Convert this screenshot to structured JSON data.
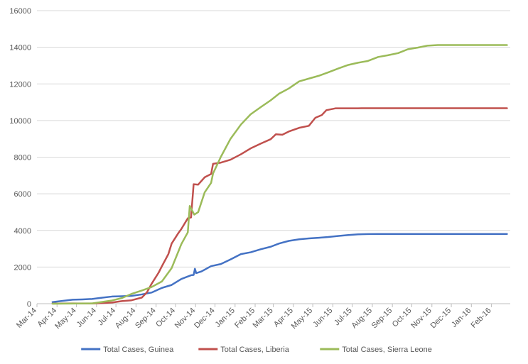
{
  "chart_data": {
    "type": "line",
    "title": "",
    "xlabel": "",
    "ylabel": "",
    "ylim": [
      0,
      16000
    ],
    "y_ticks": [
      "0",
      "2000",
      "4000",
      "6000",
      "8000",
      "10000",
      "12000",
      "14000",
      "16000"
    ],
    "x_range": [
      "2014-03-01",
      "2016-03-01"
    ],
    "x_ticks": [
      {
        "date": "2014-03-01",
        "label": "Mar-14"
      },
      {
        "date": "2014-04-01",
        "label": "Apr-14"
      },
      {
        "date": "2014-05-01",
        "label": "May-14"
      },
      {
        "date": "2014-06-01",
        "label": "Jun-14"
      },
      {
        "date": "2014-07-01",
        "label": "Jul-14"
      },
      {
        "date": "2014-08-01",
        "label": "Aug-14"
      },
      {
        "date": "2014-09-01",
        "label": "Sep-14"
      },
      {
        "date": "2014-10-01",
        "label": "Oct-14"
      },
      {
        "date": "2014-11-01",
        "label": "Nov-14"
      },
      {
        "date": "2014-12-01",
        "label": "Dec-14"
      },
      {
        "date": "2015-01-01",
        "label": "Jan-15"
      },
      {
        "date": "2015-02-01",
        "label": "Feb-15"
      },
      {
        "date": "2015-03-01",
        "label": "Mar-15"
      },
      {
        "date": "2015-04-01",
        "label": "Apr-15"
      },
      {
        "date": "2015-05-01",
        "label": "May-15"
      },
      {
        "date": "2015-06-01",
        "label": "Jun-15"
      },
      {
        "date": "2015-07-01",
        "label": "Jul-15"
      },
      {
        "date": "2015-08-01",
        "label": "Aug-15"
      },
      {
        "date": "2015-09-01",
        "label": "Sep-15"
      },
      {
        "date": "2015-10-01",
        "label": "Oct-15"
      },
      {
        "date": "2015-11-01",
        "label": "Nov-15"
      },
      {
        "date": "2015-12-01",
        "label": "Dec-15"
      },
      {
        "date": "2016-01-01",
        "label": "Jan-16"
      },
      {
        "date": "2016-02-01",
        "label": "Feb-16"
      }
    ],
    "grid": "horizontal",
    "legend_position": "bottom",
    "series": [
      {
        "name": "Total Cases, Guinea",
        "color": "#4472C4",
        "points": [
          [
            "2014-03-25",
            86
          ],
          [
            "2014-04-10",
            157
          ],
          [
            "2014-04-25",
            218
          ],
          [
            "2014-05-10",
            233
          ],
          [
            "2014-05-25",
            258
          ],
          [
            "2014-06-10",
            328
          ],
          [
            "2014-06-25",
            390
          ],
          [
            "2014-07-10",
            409
          ],
          [
            "2014-07-25",
            427
          ],
          [
            "2014-08-10",
            506
          ],
          [
            "2014-08-25",
            607
          ],
          [
            "2014-09-10",
            862
          ],
          [
            "2014-09-25",
            1022
          ],
          [
            "2014-10-10",
            1350
          ],
          [
            "2014-10-25",
            1553
          ],
          [
            "2014-10-29",
            1570
          ],
          [
            "2014-10-31",
            1906
          ],
          [
            "2014-11-02",
            1667
          ],
          [
            "2014-11-10",
            1760
          ],
          [
            "2014-11-25",
            2050
          ],
          [
            "2014-12-10",
            2164
          ],
          [
            "2014-12-25",
            2416
          ],
          [
            "2015-01-10",
            2707
          ],
          [
            "2015-01-25",
            2806
          ],
          [
            "2015-02-10",
            2975
          ],
          [
            "2015-02-25",
            3108
          ],
          [
            "2015-03-10",
            3285
          ],
          [
            "2015-03-25",
            3429
          ],
          [
            "2015-04-10",
            3515
          ],
          [
            "2015-04-25",
            3565
          ],
          [
            "2015-05-10",
            3600
          ],
          [
            "2015-05-25",
            3641
          ],
          [
            "2015-06-10",
            3700
          ],
          [
            "2015-06-25",
            3748
          ],
          [
            "2015-07-10",
            3786
          ],
          [
            "2015-07-25",
            3800
          ],
          [
            "2015-08-10",
            3804
          ],
          [
            "2016-02-25",
            3804
          ]
        ]
      },
      {
        "name": "Total Cases, Liberia",
        "color": "#C0504D",
        "points": [
          [
            "2014-03-25",
            5
          ],
          [
            "2014-04-25",
            13
          ],
          [
            "2014-05-25",
            12
          ],
          [
            "2014-06-10",
            33
          ],
          [
            "2014-06-25",
            64
          ],
          [
            "2014-07-10",
            142
          ],
          [
            "2014-07-25",
            186
          ],
          [
            "2014-08-10",
            334
          ],
          [
            "2014-08-18",
            624
          ],
          [
            "2014-08-25",
            1082
          ],
          [
            "2014-09-05",
            1700
          ],
          [
            "2014-09-10",
            2046
          ],
          [
            "2014-09-20",
            2710
          ],
          [
            "2014-09-25",
            3280
          ],
          [
            "2014-10-05",
            3834
          ],
          [
            "2014-10-10",
            4076
          ],
          [
            "2014-10-20",
            4665
          ],
          [
            "2014-10-25",
            4711
          ],
          [
            "2014-10-29",
            6525
          ],
          [
            "2014-11-05",
            6500
          ],
          [
            "2014-11-15",
            6900
          ],
          [
            "2014-11-25",
            7082
          ],
          [
            "2014-11-28",
            7635
          ],
          [
            "2014-12-10",
            7700
          ],
          [
            "2014-12-25",
            7862
          ],
          [
            "2015-01-10",
            8157
          ],
          [
            "2015-01-25",
            8478
          ],
          [
            "2015-02-10",
            8745
          ],
          [
            "2015-02-25",
            8981
          ],
          [
            "2015-03-05",
            9250
          ],
          [
            "2015-03-15",
            9224
          ],
          [
            "2015-03-25",
            9400
          ],
          [
            "2015-04-10",
            9602
          ],
          [
            "2015-04-25",
            9712
          ],
          [
            "2015-05-05",
            10150
          ],
          [
            "2015-05-15",
            10300
          ],
          [
            "2015-05-22",
            10564
          ],
          [
            "2015-06-05",
            10666
          ],
          [
            "2015-07-10",
            10670
          ],
          [
            "2015-07-20",
            10672
          ],
          [
            "2016-02-25",
            10675
          ]
        ]
      },
      {
        "name": "Total Cases, Sierra Leone",
        "color": "#9BBB59",
        "points": [
          [
            "2014-03-25",
            0
          ],
          [
            "2014-05-25",
            16
          ],
          [
            "2014-06-10",
            97
          ],
          [
            "2014-06-25",
            176
          ],
          [
            "2014-07-10",
            305
          ],
          [
            "2014-07-25",
            533
          ],
          [
            "2014-08-10",
            720
          ],
          [
            "2014-08-25",
            907
          ],
          [
            "2014-09-10",
            1216
          ],
          [
            "2014-09-25",
            1940
          ],
          [
            "2014-10-10",
            3252
          ],
          [
            "2014-10-20",
            3896
          ],
          [
            "2014-10-23",
            5338
          ],
          [
            "2014-10-30",
            4862
          ],
          [
            "2014-11-05",
            5000
          ],
          [
            "2014-11-15",
            6073
          ],
          [
            "2014-11-25",
            6599
          ],
          [
            "2014-11-28",
            7109
          ],
          [
            "2014-12-10",
            8014
          ],
          [
            "2014-12-25",
            9004
          ],
          [
            "2015-01-10",
            9780
          ],
          [
            "2015-01-25",
            10340
          ],
          [
            "2015-02-10",
            10740
          ],
          [
            "2015-02-25",
            11103
          ],
          [
            "2015-03-10",
            11466
          ],
          [
            "2015-03-25",
            11751
          ],
          [
            "2015-04-10",
            12138
          ],
          [
            "2015-04-25",
            12291
          ],
          [
            "2015-05-10",
            12440
          ],
          [
            "2015-05-25",
            12632
          ],
          [
            "2015-06-10",
            12850
          ],
          [
            "2015-06-25",
            13037
          ],
          [
            "2015-07-10",
            13158
          ],
          [
            "2015-07-25",
            13251
          ],
          [
            "2015-08-10",
            13470
          ],
          [
            "2015-08-25",
            13564
          ],
          [
            "2015-09-10",
            13683
          ],
          [
            "2015-09-25",
            13894
          ],
          [
            "2015-10-10",
            13982
          ],
          [
            "2015-10-25",
            14086
          ],
          [
            "2015-11-10",
            14122
          ],
          [
            "2016-02-25",
            14122
          ]
        ]
      }
    ]
  }
}
